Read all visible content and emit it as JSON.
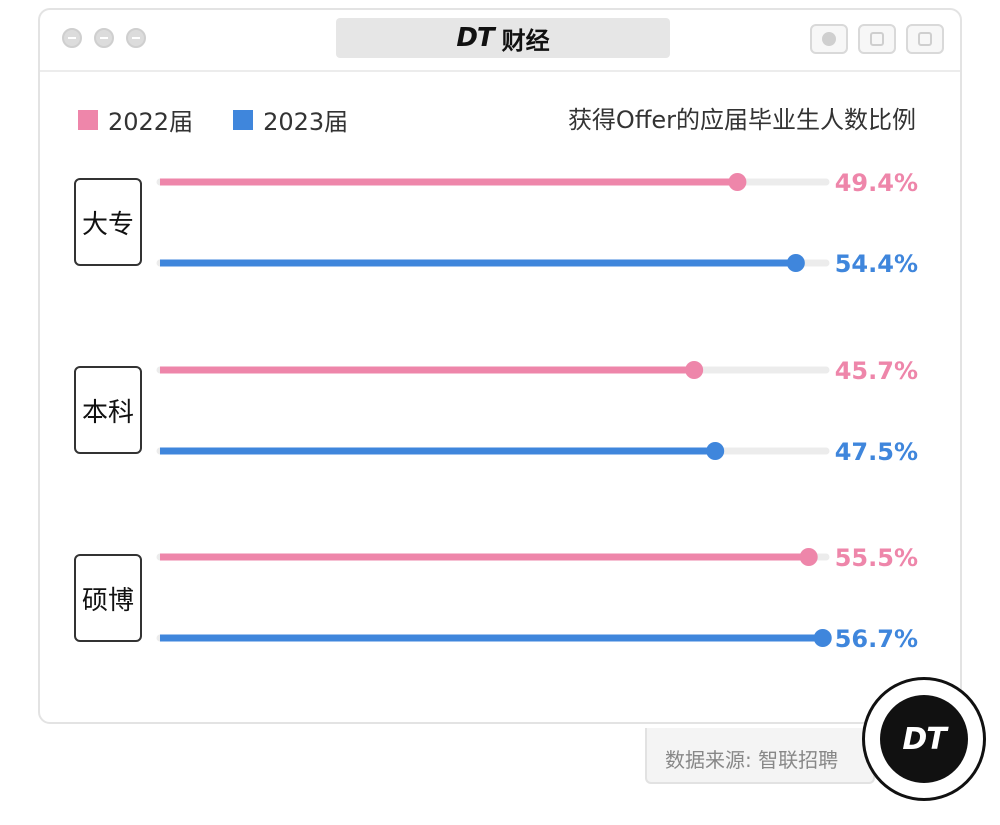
{
  "header": {
    "logo_text": "DT",
    "title": "财经"
  },
  "legend": [
    {
      "label": "2022届",
      "color": "#ee86aa"
    },
    {
      "label": "2023届",
      "color": "#3f86dc"
    }
  ],
  "subtitle": "获得Offer的应届毕业生人数比例",
  "chart_data": {
    "type": "bar",
    "orientation": "horizontal",
    "categories": [
      "大专",
      "本科",
      "硕博"
    ],
    "series": [
      {
        "name": "2022届",
        "values": [
          49.4,
          45.7,
          55.5
        ],
        "labels": [
          "49.4%",
          "45.7%",
          "55.5%"
        ],
        "color": "#ee86aa"
      },
      {
        "name": "2023届",
        "values": [
          54.4,
          47.5,
          56.7
        ],
        "labels": [
          "54.4%",
          "47.5%",
          "56.7%"
        ],
        "color": "#3f86dc"
      }
    ],
    "xlim": [
      0,
      60
    ],
    "grid": false,
    "legend_position": "top-left"
  },
  "source": "数据来源: 智联招聘",
  "badge_text": "DT"
}
